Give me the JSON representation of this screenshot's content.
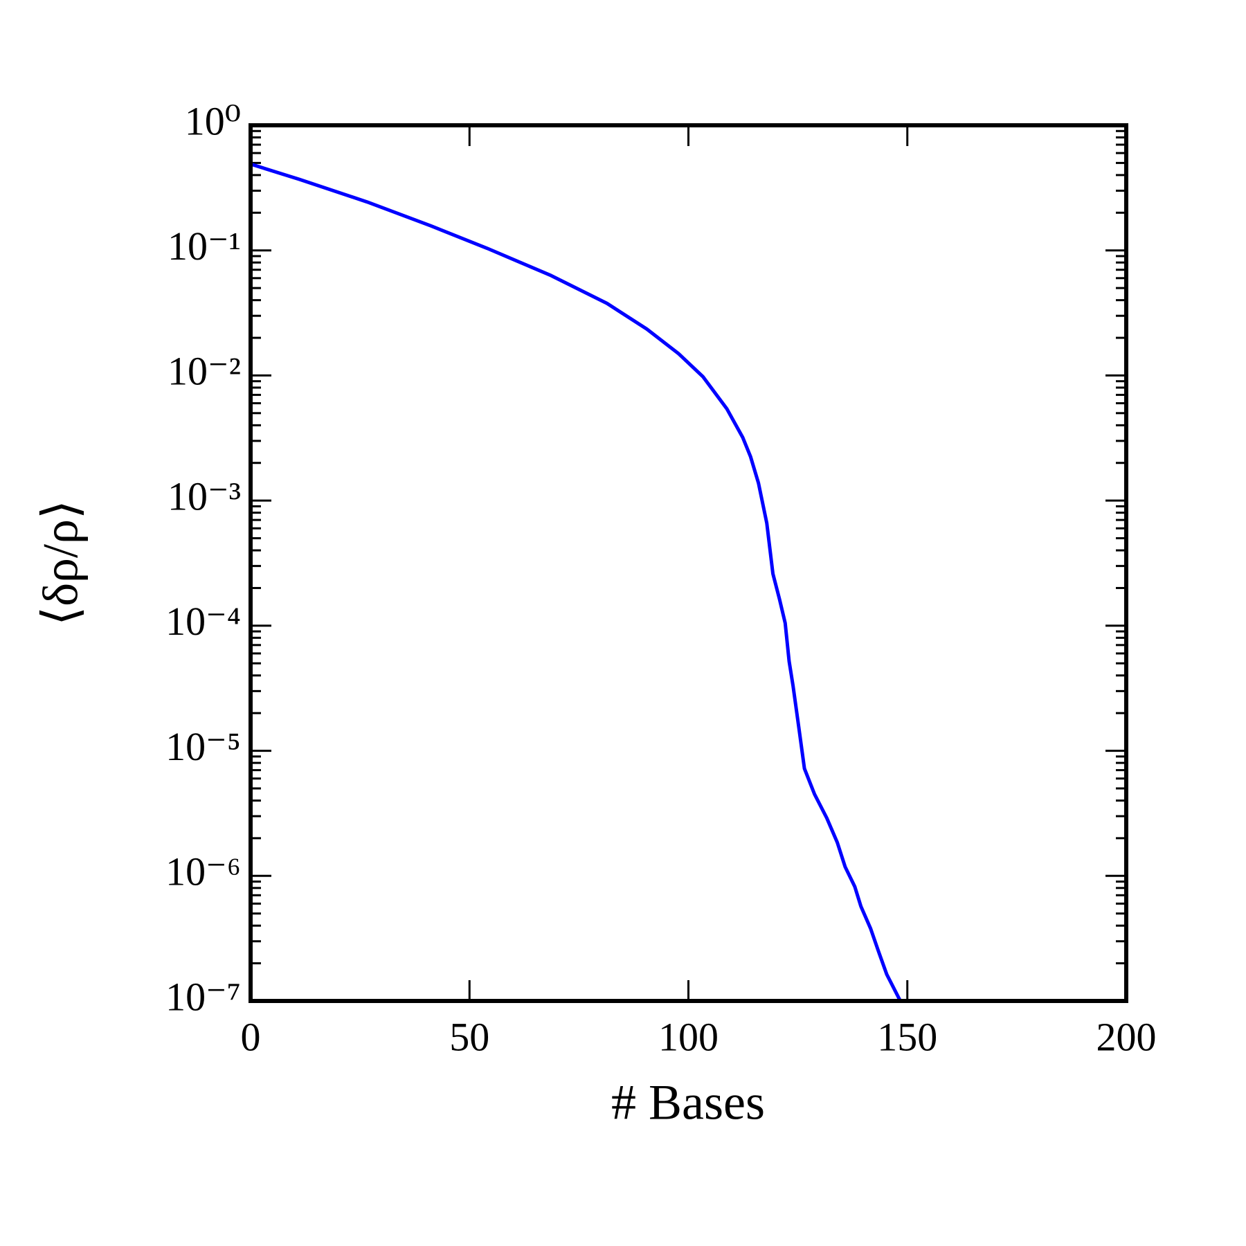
{
  "chart_data": {
    "type": "line",
    "xlabel": "# Bases",
    "ylabel": "⟨δρ/ρ⟩",
    "yscale": "log",
    "color": "#0000ff",
    "x": [
      0,
      11.1,
      26.6,
      41.2,
      54,
      68.6,
      81.4,
      90.5,
      97.8,
      103.3,
      108.8,
      112.4,
      114.2,
      116,
      117.9,
      119.3,
      120.8,
      122.1,
      123,
      123.9,
      125.2,
      126.5,
      128.8,
      131.6,
      134,
      135.8,
      138,
      139.4,
      141.6,
      143.4,
      145.3,
      148.4
    ],
    "values": [
      0.49,
      0.37,
      0.244,
      0.157,
      0.104,
      0.063,
      0.0377,
      0.0235,
      0.0149,
      0.0098,
      0.0054,
      0.0032,
      0.00224,
      0.00138,
      0.00066,
      0.00026,
      0.000163,
      0.000105,
      5.2e-05,
      3.3e-05,
      1.55e-05,
      7.2e-06,
      4.5e-06,
      2.9e-06,
      1.85e-06,
      1.18e-06,
      8.2e-07,
      5.7e-07,
      3.8e-07,
      2.5e-07,
      1.63e-07,
      1e-07
    ],
    "xlim": [
      0,
      200
    ],
    "xticks": [
      0,
      50,
      100,
      150,
      200
    ],
    "ylim": [
      1e-07,
      1
    ],
    "yticks": [
      {
        "value": 1e-07,
        "label": "10⁻⁷"
      },
      {
        "value": 1e-06,
        "label": "10⁻⁶"
      },
      {
        "value": 1e-05,
        "label": "10⁻⁵"
      },
      {
        "value": 0.0001,
        "label": "10⁻⁴"
      },
      {
        "value": 0.001,
        "label": "10⁻³"
      },
      {
        "value": 0.01,
        "label": "10⁻²"
      },
      {
        "value": 0.1,
        "label": "10⁻¹"
      },
      {
        "value": 1,
        "label": "10⁰"
      }
    ],
    "yminorticks": [
      2e-07,
      3e-07,
      4e-07,
      5e-07,
      6e-07,
      7e-07,
      8e-07,
      9e-07,
      2e-06,
      3e-06,
      4e-06,
      5e-06,
      6e-06,
      7e-06,
      8e-06,
      9e-06,
      2e-05,
      3e-05,
      4e-05,
      5e-05,
      6e-05,
      7e-05,
      8e-05,
      9e-05,
      0.0002,
      0.0003,
      0.0004,
      0.0005,
      0.0006,
      0.0007,
      0.0008,
      0.0009,
      0.002,
      0.003,
      0.004,
      0.005,
      0.006,
      0.007,
      0.008,
      0.009,
      0.02,
      0.03,
      0.04,
      0.05,
      0.06,
      0.07,
      0.08,
      0.09,
      0.2,
      0.3,
      0.4,
      0.5,
      0.6,
      0.7,
      0.8,
      0.9
    ]
  }
}
